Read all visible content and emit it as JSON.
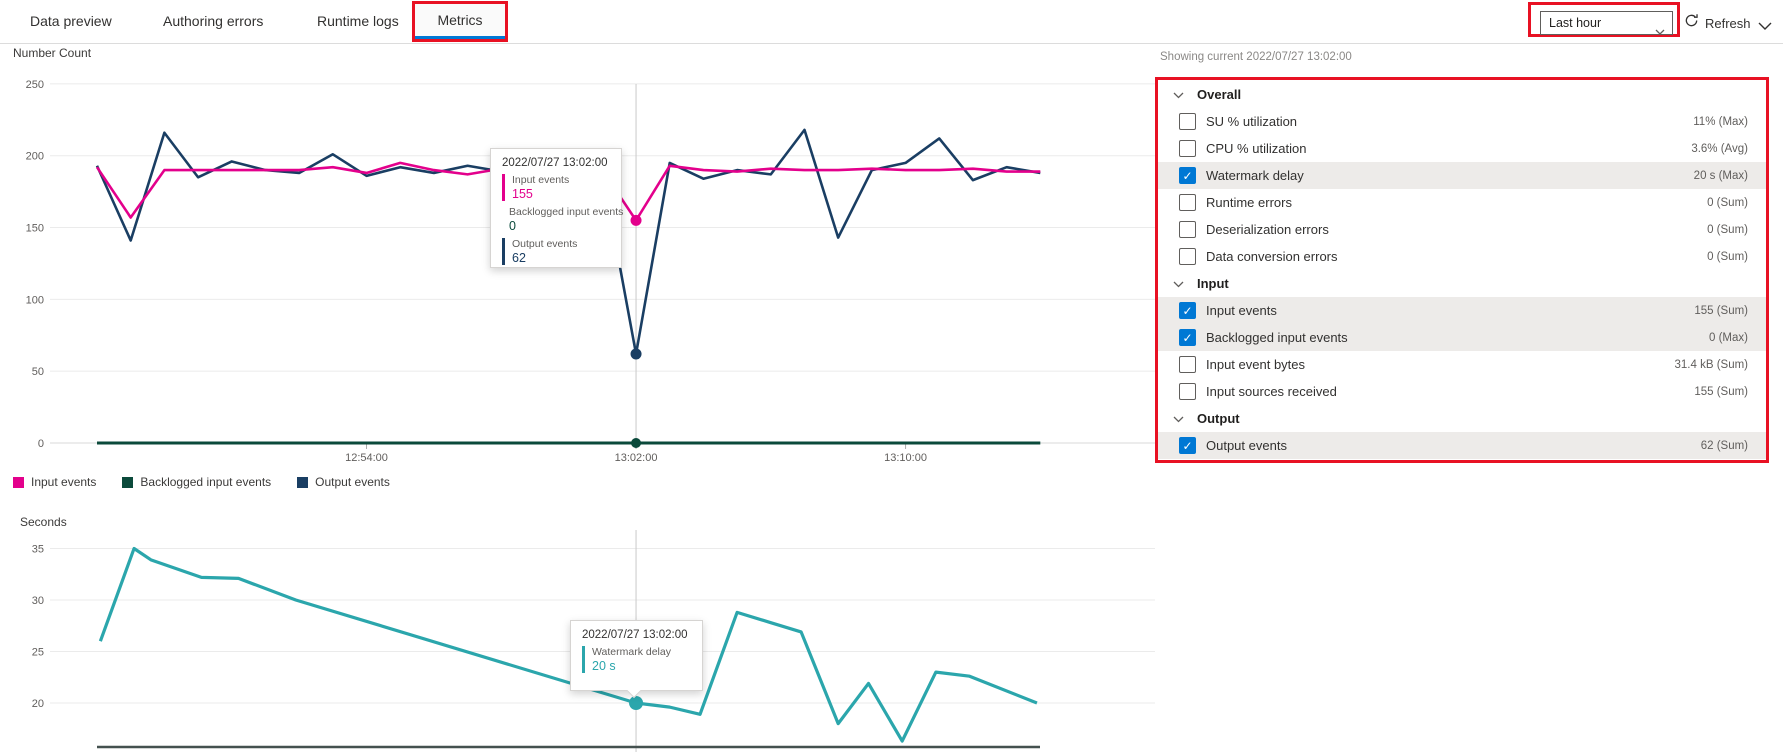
{
  "tabs": {
    "items": [
      {
        "label": "Data preview",
        "active": false
      },
      {
        "label": "Authoring errors",
        "active": false
      },
      {
        "label": "Runtime logs",
        "active": false
      },
      {
        "label": "Metrics",
        "active": true
      }
    ]
  },
  "toolbar": {
    "time_range": "Last hour",
    "refresh_label": "Refresh"
  },
  "metrics_panel": {
    "showing_current": "Showing current 2022/07/27 13:02:00",
    "groups": [
      {
        "label": "Overall",
        "rows": [
          {
            "label": "SU % utilization",
            "value": "11% (Max)",
            "checked": false,
            "highlighted": false
          },
          {
            "label": "CPU % utilization",
            "value": "3.6% (Avg)",
            "checked": false,
            "highlighted": false
          },
          {
            "label": "Watermark delay",
            "value": "20 s (Max)",
            "checked": true,
            "highlighted": true
          },
          {
            "label": "Runtime errors",
            "value": "0 (Sum)",
            "checked": false,
            "highlighted": false
          },
          {
            "label": "Deserialization errors",
            "value": "0 (Sum)",
            "checked": false,
            "highlighted": false
          },
          {
            "label": "Data conversion errors",
            "value": "0 (Sum)",
            "checked": false,
            "highlighted": false
          }
        ]
      },
      {
        "label": "Input",
        "rows": [
          {
            "label": "Input events",
            "value": "155 (Sum)",
            "checked": true,
            "highlighted": true
          },
          {
            "label": "Backlogged input events",
            "value": "0 (Max)",
            "checked": true,
            "highlighted": true
          },
          {
            "label": "Input event bytes",
            "value": "31.4 kB (Sum)",
            "checked": false,
            "highlighted": false
          },
          {
            "label": "Input sources received",
            "value": "155 (Sum)",
            "checked": false,
            "highlighted": false
          }
        ]
      },
      {
        "label": "Output",
        "rows": [
          {
            "label": "Output events",
            "value": "62 (Sum)",
            "checked": true,
            "highlighted": true
          }
        ]
      }
    ]
  },
  "chart_data": [
    {
      "type": "line",
      "title": "Number Count",
      "x_axis": {
        "unit": "time",
        "start": "12:46:00",
        "interval_minutes": 1,
        "tick_labels": [
          {
            "label": "12:54:00",
            "minute": 8
          },
          {
            "label": "13:02:00",
            "minute": 16
          },
          {
            "label": "13:10:00",
            "minute": 24
          }
        ]
      },
      "ylim": [
        0,
        250
      ],
      "yticks": [
        0,
        50,
        100,
        150,
        200,
        250
      ],
      "series": [
        {
          "name": "Input events",
          "color": "#E3008C",
          "values": [
            192,
            157,
            190,
            190,
            190,
            190,
            190,
            192,
            188,
            195,
            190,
            187,
            191,
            189,
            190,
            190,
            155,
            193,
            190,
            189,
            191,
            190,
            190,
            191,
            190,
            190,
            191,
            189,
            189
          ]
        },
        {
          "name": "Backlogged input events",
          "color": "#0B4A3B",
          "values": [
            0,
            0,
            0,
            0,
            0,
            0,
            0,
            0,
            0,
            0,
            0,
            0,
            0,
            0,
            0,
            0,
            0,
            0,
            0,
            0,
            0,
            0,
            0,
            0,
            0,
            0,
            0,
            0,
            0
          ]
        },
        {
          "name": "Output events",
          "color": "#1A3E63",
          "values": [
            193,
            141,
            216,
            185,
            196,
            190,
            188,
            201,
            186,
            192,
            188,
            193,
            189,
            192,
            190,
            189,
            62,
            195,
            184,
            190,
            187,
            218,
            143,
            190,
            195,
            212,
            183,
            192,
            188
          ]
        }
      ],
      "crosshair_minute": 16,
      "highlight_points": [
        {
          "series": "Input events",
          "minute": 16,
          "value": 155
        },
        {
          "series": "Backlogged input events",
          "minute": 16,
          "value": 0
        },
        {
          "series": "Output events",
          "minute": 16,
          "value": 62
        }
      ],
      "tooltip": {
        "date": "2022/07/27 13:02:00",
        "entries": [
          {
            "label": "Input events",
            "value": "155",
            "color": "#E3008C"
          },
          {
            "label": "Backlogged input events",
            "value": "0",
            "color": "#0B4A3B"
          },
          {
            "label": "Output events",
            "value": "62",
            "color": "#1A3E63"
          }
        ]
      }
    },
    {
      "type": "line",
      "title": "Seconds",
      "x_axis": {
        "unit": "time",
        "start": "12:46:00"
      },
      "ylim": [
        15,
        37
      ],
      "yticks": [
        20,
        25,
        30,
        35
      ],
      "series": [
        {
          "name": "Watermark delay",
          "color": "#2BA6AC",
          "points": [
            [
              0.1,
              26
            ],
            [
              1.1,
              35
            ],
            [
              1.6,
              33.9
            ],
            [
              3.1,
              32.2
            ],
            [
              4.2,
              32.1
            ],
            [
              5.9,
              30
            ],
            [
              16,
              20
            ],
            [
              17,
              19.6
            ],
            [
              17.9,
              18.9
            ],
            [
              19,
              28.8
            ],
            [
              20,
              27.8
            ],
            [
              20.9,
              26.9
            ],
            [
              22,
              18
            ],
            [
              22.9,
              21.9
            ],
            [
              23.9,
              16.3
            ],
            [
              24.9,
              23
            ],
            [
              25.9,
              22.6
            ],
            [
              27.9,
              20
            ]
          ]
        }
      ],
      "crosshair_minute": 16,
      "highlight_point": {
        "minute": 16,
        "value": 20
      },
      "tooltip": {
        "date": "2022/07/27 13:02:00",
        "label": "Watermark delay",
        "value": "20 s"
      }
    }
  ]
}
